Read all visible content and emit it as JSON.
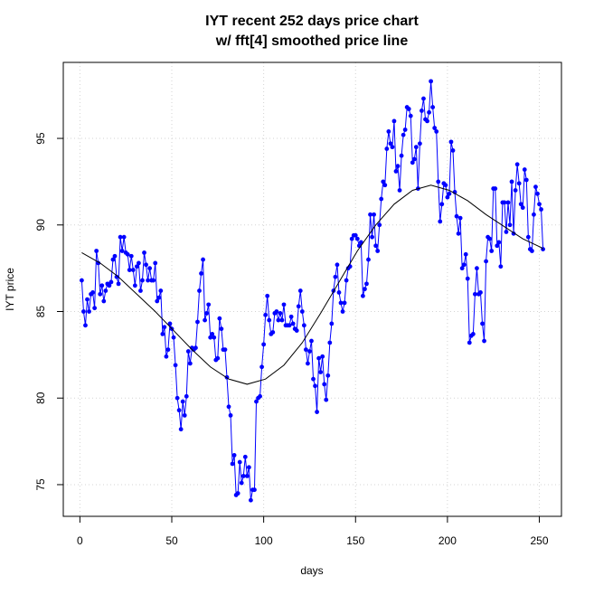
{
  "chart_data": {
    "type": "line",
    "title": "IYT recent 252 days price chart",
    "subtitle": "w/ fft[4] smoothed price line",
    "x_label": "days",
    "y_label": "IYT price",
    "xlim": [
      -9.04,
      262.04
    ],
    "ylim": [
      73.17,
      99.39
    ],
    "xticks": [
      0,
      50,
      100,
      150,
      200,
      250
    ],
    "yticks": [
      75,
      80,
      85,
      90,
      95
    ],
    "grid": true,
    "x": [
      1,
      2,
      3,
      4,
      5,
      6,
      7,
      8,
      9,
      10,
      11,
      12,
      13,
      14,
      15,
      16,
      17,
      18,
      19,
      20,
      21,
      22,
      23,
      24,
      25,
      26,
      27,
      28,
      29,
      30,
      31,
      32,
      33,
      34,
      35,
      36,
      37,
      38,
      39,
      40,
      41,
      42,
      43,
      44,
      45,
      46,
      47,
      48,
      49,
      50,
      51,
      52,
      53,
      54,
      55,
      56,
      57,
      58,
      59,
      60,
      61,
      62,
      63,
      64,
      65,
      66,
      67,
      68,
      69,
      70,
      71,
      72,
      73,
      74,
      75,
      76,
      77,
      78,
      79,
      80,
      81,
      82,
      83,
      84,
      85,
      86,
      87,
      88,
      89,
      90,
      91,
      92,
      93,
      94,
      95,
      96,
      97,
      98,
      99,
      100,
      101,
      102,
      103,
      104,
      105,
      106,
      107,
      108,
      109,
      110,
      111,
      112,
      113,
      114,
      115,
      116,
      117,
      118,
      119,
      120,
      121,
      122,
      123,
      124,
      125,
      126,
      127,
      128,
      129,
      130,
      131,
      132,
      133,
      134,
      135,
      136,
      137,
      138,
      139,
      140,
      141,
      142,
      143,
      144,
      145,
      146,
      147,
      148,
      149,
      150,
      151,
      152,
      153,
      154,
      155,
      156,
      157,
      158,
      159,
      160,
      161,
      162,
      163,
      164,
      165,
      166,
      167,
      168,
      169,
      170,
      171,
      172,
      173,
      174,
      175,
      176,
      177,
      178,
      179,
      180,
      181,
      182,
      183,
      184,
      185,
      186,
      187,
      188,
      189,
      190,
      191,
      192,
      193,
      194,
      195,
      196,
      197,
      198,
      199,
      200,
      201,
      202,
      203,
      204,
      205,
      206,
      207,
      208,
      209,
      210,
      211,
      212,
      213,
      214,
      215,
      216,
      217,
      218,
      219,
      220,
      221,
      222,
      223,
      224,
      225,
      226,
      227,
      228,
      229,
      230,
      231,
      232,
      233,
      234,
      235,
      236,
      237,
      238,
      239,
      240,
      241,
      242,
      243,
      244,
      245,
      246,
      247,
      248,
      249,
      250,
      251,
      252
    ],
    "series": [
      {
        "color": "#0000ff",
        "markers": true,
        "values": [
          86.8,
          85,
          84.2,
          85.7,
          85,
          86,
          86.1,
          85.2,
          88.5,
          87.8,
          86,
          86.5,
          85.6,
          86.2,
          86.6,
          86.5,
          86.7,
          88,
          88.2,
          87,
          86.6,
          89.3,
          88.5,
          89.3,
          88.4,
          88.3,
          87.4,
          88.2,
          87.4,
          86.5,
          87.6,
          87.8,
          86.2,
          86.8,
          88.4,
          87.7,
          86.8,
          87.5,
          86.8,
          86.8,
          87.8,
          85.6,
          85.8,
          86.2,
          83.7,
          84.1,
          82.4,
          82.8,
          84.3,
          84,
          83.5,
          81.9,
          80,
          79.3,
          78.2,
          79.8,
          79,
          80.1,
          82.7,
          82,
          82.9,
          82.8,
          82.9,
          84.4,
          86.2,
          87.2,
          88,
          84.5,
          84.9,
          85.4,
          83.5,
          83.7,
          83.5,
          82.2,
          82.3,
          84.6,
          84,
          82.8,
          82.8,
          81.2,
          79.5,
          79,
          76.2,
          76.7,
          74.4,
          74.5,
          76.3,
          75.1,
          75.5,
          76.6,
          75.5,
          76,
          74.1,
          74.7,
          74.7,
          79.8,
          80,
          80.1,
          81.8,
          83.1,
          84.8,
          85.9,
          84.5,
          83.7,
          83.8,
          84.9,
          85,
          84.5,
          84.9,
          84.5,
          85.4,
          84.2,
          84.2,
          84.2,
          84.7,
          84.3,
          84,
          83.9,
          85.3,
          86.2,
          85,
          84.2,
          82.8,
          82,
          82.7,
          83.3,
          81.1,
          80.7,
          79.2,
          82.3,
          81.5,
          82.4,
          80.8,
          79.9,
          81.3,
          83.2,
          84.3,
          86.2,
          87,
          87.7,
          86.1,
          85.5,
          85,
          85.5,
          86.8,
          87.5,
          87.6,
          89.2,
          89.4,
          89.4,
          89.2,
          88.8,
          89,
          85.9,
          86.3,
          86.6,
          88,
          90.6,
          89.3,
          90.6,
          88.8,
          88.5,
          90,
          91.5,
          92.5,
          92.3,
          94.4,
          95.4,
          94.7,
          94.5,
          96,
          93.1,
          93.4,
          92,
          94,
          95.2,
          95.5,
          96.8,
          96.7,
          96.3,
          93.6,
          93.8,
          94.5,
          92.1,
          94.7,
          96.6,
          97.3,
          96.1,
          96,
          96.5,
          98.3,
          96.8,
          95.6,
          95.4,
          92.5,
          90.2,
          91.2,
          92.4,
          92.3,
          91.6,
          91.8,
          94.8,
          94.3,
          91.9,
          90.5,
          89.5,
          90.4,
          87.5,
          87.7,
          88.3,
          86.9,
          83.2,
          83.6,
          83.7,
          86,
          87.5,
          86,
          86.1,
          84.3,
          83.3,
          87.9,
          89.3,
          89.2,
          88.5,
          92.1,
          92.1,
          88.8,
          89,
          87.6,
          91.3,
          91.3,
          89.6,
          91.3,
          90,
          92.5,
          89.5,
          92,
          93.5,
          92.4,
          91.2,
          91,
          93.2,
          92.6,
          89.3,
          88.6,
          88.5,
          90.6,
          92.2,
          91.8,
          91.2,
          90.9,
          88.6
        ]
      },
      {
        "color": "#000000",
        "markers": false,
        "x": [
          1,
          11,
          21,
          31,
          41,
          51,
          61,
          71,
          81,
          91,
          101,
          111,
          121,
          131,
          141,
          151,
          161,
          171,
          181,
          191,
          201,
          211,
          221,
          231,
          241,
          251,
          252
        ],
        "values": [
          88.4,
          87.8,
          87,
          86,
          85,
          83.9,
          82.8,
          81.8,
          81.1,
          80.8,
          81.1,
          81.9,
          83.2,
          84.9,
          86.7,
          88.5,
          90,
          91.2,
          92,
          92.3,
          92,
          91.4,
          90.6,
          89.9,
          89.2,
          88.7,
          88.6
        ]
      }
    ]
  }
}
